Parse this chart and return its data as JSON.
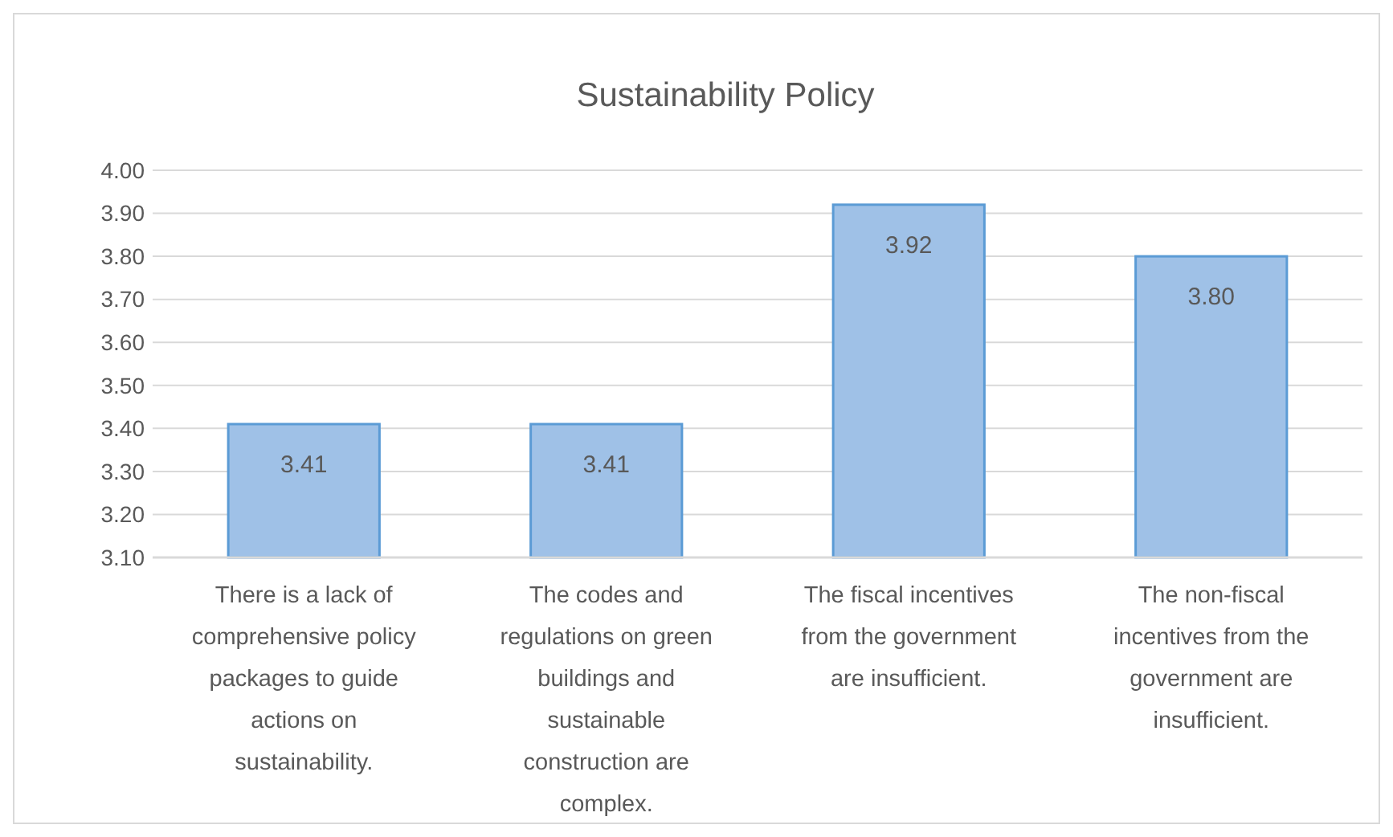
{
  "chart_data": {
    "type": "bar",
    "title": "Sustainability Policy",
    "categories": [
      "There is a lack of comprehensive policy packages to guide actions on sustainability.",
      "The codes and regulations on green buildings and sustainable construction are complex.",
      "The fiscal incentives from the government are insufficient.",
      "The non-fiscal incentives from the government are insufficient."
    ],
    "values": [
      3.41,
      3.41,
      3.92,
      3.8
    ],
    "color": "#9fc1e7",
    "ylim": [
      3.1,
      4.0
    ],
    "yticks": [
      {
        "value": 3.1,
        "label": "3.10"
      },
      {
        "value": 3.2,
        "label": "3.20"
      },
      {
        "value": 3.3,
        "label": "3.30"
      },
      {
        "value": 3.4,
        "label": "3.40"
      },
      {
        "value": 3.5,
        "label": "3.50"
      },
      {
        "value": 3.6,
        "label": "3.60"
      },
      {
        "value": 3.7,
        "label": "3.70"
      },
      {
        "value": 3.8,
        "label": "3.80"
      },
      {
        "value": 3.9,
        "label": "3.90"
      },
      {
        "value": 4.0,
        "label": "4.00"
      }
    ],
    "value_labels": [
      "3.41",
      "3.41",
      "3.92",
      "3.80"
    ],
    "grid": "y"
  }
}
